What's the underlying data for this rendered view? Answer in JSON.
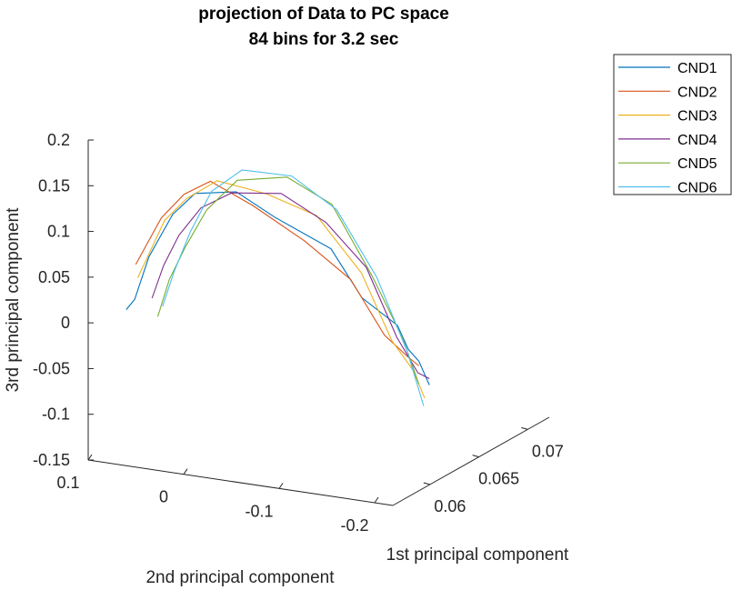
{
  "chart_data": {
    "type": "line",
    "projection": "3d",
    "title": "projection of Data to PC space",
    "subtitle": "84 bins for 3.2 sec",
    "xlabel": "1st principal component",
    "ylabel": "2nd principal component",
    "zlabel": "3rd principal component",
    "xticks": [
      "0.06",
      "0.065",
      "0.07"
    ],
    "yticks": [
      "0.1",
      "0",
      "-0.1",
      "-0.2"
    ],
    "zticks": [
      "0.2",
      "0.15",
      "0.1",
      "0.05",
      "0",
      "-0.05",
      "-0.1",
      "-0.15"
    ],
    "zlim": [
      -0.15,
      0.2
    ],
    "legend_position": "top-right",
    "series": [
      {
        "name": "CND1",
        "color": "#0072BD",
        "values": [
          [
            0.0597,
            0.096,
            -0.006
          ],
          [
            0.0599,
            0.0892,
            0.005
          ],
          [
            0.0601,
            0.0765,
            0.052
          ],
          [
            0.0602,
            0.0525,
            0.102
          ],
          [
            0.0604,
            0.0311,
            0.127
          ],
          [
            0.0606,
            -0.0101,
            0.134
          ],
          [
            0.0608,
            -0.0481,
            0.111
          ],
          [
            0.061,
            -0.1051,
            0.084
          ],
          [
            0.0612,
            -0.1354,
            0.034
          ],
          [
            0.0614,
            -0.1706,
            0.008
          ],
          [
            0.0616,
            -0.18,
            -0.018
          ],
          [
            0.0617,
            -0.19,
            -0.03
          ],
          [
            0.0618,
            -0.2,
            -0.055
          ]
        ]
      },
      {
        "name": "CND2",
        "color": "#D95319",
        "values": [
          [
            0.0597,
            0.086,
            0.045
          ],
          [
            0.0599,
            0.0771,
            0.066
          ],
          [
            0.0601,
            0.0634,
            0.097
          ],
          [
            0.0603,
            0.0416,
            0.125
          ],
          [
            0.0605,
            0.016,
            0.142
          ],
          [
            0.0607,
            -0.026,
            0.121
          ],
          [
            0.0609,
            -0.0785,
            0.089
          ],
          [
            0.0611,
            -0.1247,
            0.053
          ],
          [
            0.0613,
            -0.158,
            -0.004
          ],
          [
            0.0615,
            -0.18,
            -0.025
          ],
          [
            0.0617,
            -0.19,
            -0.035
          ]
        ]
      },
      {
        "name": "CND3",
        "color": "#EDB120",
        "values": [
          [
            0.0598,
            0.085,
            0.03
          ],
          [
            0.06,
            0.075,
            0.057
          ],
          [
            0.0602,
            0.061,
            0.094
          ],
          [
            0.0604,
            0.04,
            0.12
          ],
          [
            0.0606,
            0.01,
            0.143
          ],
          [
            0.0608,
            -0.04,
            0.135
          ],
          [
            0.061,
            -0.09,
            0.118
          ],
          [
            0.0612,
            -0.135,
            0.061
          ],
          [
            0.0614,
            -0.165,
            -0.01
          ],
          [
            0.0616,
            -0.185,
            -0.04
          ],
          [
            0.0618,
            -0.195,
            -0.07
          ]
        ]
      },
      {
        "name": "CND4",
        "color": "#7E2F8E",
        "values": [
          [
            0.0598,
            0.07,
            0.01
          ],
          [
            0.06,
            0.06,
            0.046
          ],
          [
            0.0602,
            0.046,
            0.08
          ],
          [
            0.0604,
            0.025,
            0.112
          ],
          [
            0.0606,
            -0.005,
            0.132
          ],
          [
            0.0608,
            -0.055,
            0.138
          ],
          [
            0.061,
            -0.1,
            0.112
          ],
          [
            0.0612,
            -0.14,
            0.068
          ],
          [
            0.0614,
            -0.17,
            -0.005
          ],
          [
            0.0616,
            -0.19,
            -0.042
          ],
          [
            0.0618,
            -0.2,
            -0.048
          ]
        ]
      },
      {
        "name": "CND5",
        "color": "#77AC30",
        "values": [
          [
            0.0599,
            0.065,
            -0.01
          ],
          [
            0.0601,
            0.055,
            0.031
          ],
          [
            0.0603,
            0.04,
            0.068
          ],
          [
            0.0605,
            0.02,
            0.11
          ],
          [
            0.0607,
            -0.01,
            0.146
          ],
          [
            0.0609,
            -0.06,
            0.156
          ],
          [
            0.0611,
            -0.105,
            0.132
          ],
          [
            0.0613,
            -0.145,
            0.059
          ],
          [
            0.0615,
            -0.175,
            -0.006
          ],
          [
            0.0617,
            -0.19,
            -0.055
          ]
        ]
      },
      {
        "name": "CND6",
        "color": "#4DBEEE",
        "values": [
          [
            0.0599,
            0.06,
            0.002
          ],
          [
            0.0601,
            0.05,
            0.04
          ],
          [
            0.0603,
            0.035,
            0.085
          ],
          [
            0.0605,
            0.015,
            0.131
          ],
          [
            0.0607,
            -0.015,
            0.158
          ],
          [
            0.0609,
            -0.065,
            0.158
          ],
          [
            0.0611,
            -0.11,
            0.127
          ],
          [
            0.0613,
            -0.15,
            0.058
          ],
          [
            0.0615,
            -0.18,
            -0.02
          ],
          [
            0.0617,
            -0.195,
            -0.078
          ]
        ]
      }
    ]
  }
}
